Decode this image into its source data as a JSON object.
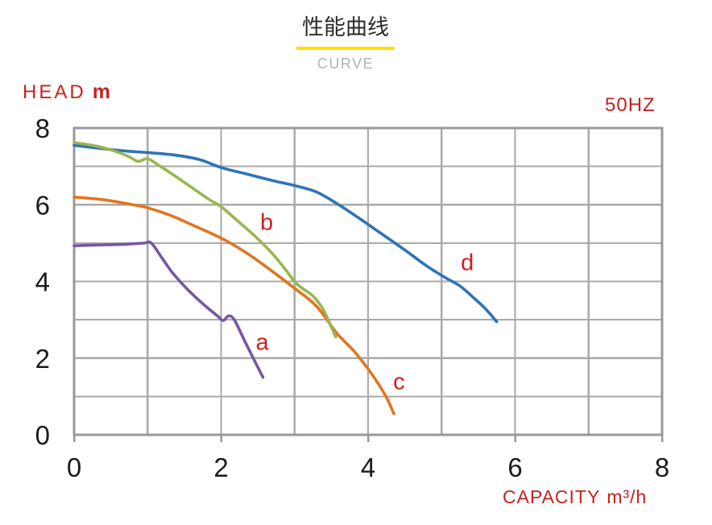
{
  "title": {
    "main": "性能曲线",
    "subtitle": "CURVE"
  },
  "labels": {
    "y_axis_name": "HEAD",
    "y_axis_unit": "m",
    "frequency": "50HZ",
    "x_axis_name": "CAPACITY",
    "x_axis_unit": "m³/h"
  },
  "colors": {
    "accent_red": "#c9211f",
    "underline_yellow": "#ffe000",
    "subtitle_gray": "#b2b2b2",
    "grid_gray": "#a9a9a9",
    "border_gray": "#989898",
    "tick_text": "#1b1b1b",
    "curve_a": "#75599f",
    "curve_b": "#99b74e",
    "curve_c": "#e2751f",
    "curve_d": "#2e73b8"
  },
  "chart_data": {
    "type": "line",
    "title": "性能曲线 (CURVE)",
    "xlabel": "CAPACITY m³/h",
    "ylabel": "HEAD m",
    "frequency": "50HZ",
    "xlim": [
      0,
      8
    ],
    "ylim": [
      0,
      8
    ],
    "x_ticks": [
      0,
      2,
      4,
      6,
      8
    ],
    "y_ticks": [
      0,
      2,
      4,
      6,
      8
    ],
    "grid_step": 1,
    "grid": true,
    "legend_position": "inline-curve-labels",
    "series": [
      {
        "name": "d",
        "color": "#2e73b8",
        "label_pos": [
          5.35,
          4.5
        ],
        "points": [
          [
            0,
            7.55
          ],
          [
            0.35,
            7.47
          ],
          [
            0.7,
            7.4
          ],
          [
            1.0,
            7.36
          ],
          [
            1.35,
            7.3
          ],
          [
            1.7,
            7.18
          ],
          [
            2.0,
            6.97
          ],
          [
            2.35,
            6.8
          ],
          [
            2.7,
            6.63
          ],
          [
            3.0,
            6.5
          ],
          [
            3.3,
            6.33
          ],
          [
            3.6,
            6.0
          ],
          [
            3.9,
            5.62
          ],
          [
            4.2,
            5.22
          ],
          [
            4.5,
            4.82
          ],
          [
            4.8,
            4.4
          ],
          [
            5.05,
            4.1
          ],
          [
            5.25,
            3.88
          ],
          [
            5.45,
            3.55
          ],
          [
            5.6,
            3.28
          ],
          [
            5.75,
            2.95
          ]
        ]
      },
      {
        "name": "c",
        "color": "#e2751f",
        "label_pos": [
          4.42,
          1.4
        ],
        "points": [
          [
            0,
            6.2
          ],
          [
            0.4,
            6.13
          ],
          [
            0.8,
            6.0
          ],
          [
            1.0,
            5.92
          ],
          [
            1.3,
            5.73
          ],
          [
            1.6,
            5.48
          ],
          [
            2.0,
            5.13
          ],
          [
            2.3,
            4.8
          ],
          [
            2.6,
            4.4
          ],
          [
            3.0,
            3.82
          ],
          [
            3.3,
            3.35
          ],
          [
            3.57,
            2.66
          ],
          [
            3.8,
            2.2
          ],
          [
            4.0,
            1.72
          ],
          [
            4.15,
            1.3
          ],
          [
            4.27,
            0.9
          ],
          [
            4.35,
            0.55
          ]
        ]
      },
      {
        "name": "b",
        "color": "#99b74e",
        "label_pos": [
          2.62,
          5.55
        ],
        "points": [
          [
            0,
            7.62
          ],
          [
            0.3,
            7.53
          ],
          [
            0.55,
            7.4
          ],
          [
            0.75,
            7.25
          ],
          [
            0.87,
            7.13
          ],
          [
            1.0,
            7.2
          ],
          [
            1.15,
            7.03
          ],
          [
            1.35,
            6.78
          ],
          [
            1.6,
            6.45
          ],
          [
            1.85,
            6.12
          ],
          [
            2.0,
            5.95
          ],
          [
            2.2,
            5.62
          ],
          [
            2.45,
            5.2
          ],
          [
            2.7,
            4.72
          ],
          [
            2.9,
            4.25
          ],
          [
            3.0,
            3.99
          ],
          [
            3.12,
            3.8
          ],
          [
            3.25,
            3.62
          ],
          [
            3.38,
            3.3
          ],
          [
            3.48,
            2.9
          ],
          [
            3.56,
            2.55
          ]
        ]
      },
      {
        "name": "a",
        "color": "#75599f",
        "label_pos": [
          2.56,
          2.42
        ],
        "points": [
          [
            0,
            4.93
          ],
          [
            0.35,
            4.95
          ],
          [
            0.7,
            4.97
          ],
          [
            0.95,
            5.0
          ],
          [
            1.05,
            5.0
          ],
          [
            1.2,
            4.6
          ],
          [
            1.35,
            4.2
          ],
          [
            1.55,
            3.78
          ],
          [
            1.75,
            3.42
          ],
          [
            1.95,
            3.1
          ],
          [
            2.03,
            2.98
          ],
          [
            2.1,
            3.1
          ],
          [
            2.18,
            3.0
          ],
          [
            2.32,
            2.45
          ],
          [
            2.45,
            1.95
          ],
          [
            2.57,
            1.5
          ]
        ]
      }
    ]
  }
}
